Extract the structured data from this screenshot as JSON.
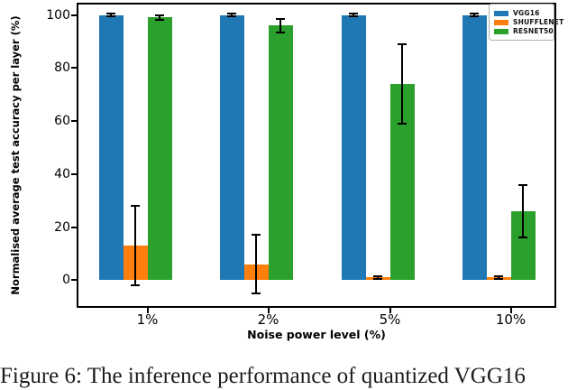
{
  "figure": {
    "caption": "Figure 6: The inference performance of quantized VGG16"
  },
  "chart_data": {
    "type": "bar",
    "title": "",
    "xlabel": "Noise power level (%)",
    "ylabel": "Normalised average test accuracy per layer (%)",
    "categories": [
      "1%",
      "2%",
      "5%",
      "10%"
    ],
    "series": [
      {
        "name": "VGG16",
        "color": "#1f77b4",
        "values": [
          100,
          100,
          100,
          100
        ],
        "errors": [
          0.4,
          0.4,
          0.4,
          0.4
        ]
      },
      {
        "name": "SHUFFLENET",
        "color": "#ff7f0e",
        "values": [
          13,
          6,
          1,
          1
        ],
        "errors": [
          15,
          11,
          0.5,
          0.5
        ]
      },
      {
        "name": "RESNET50",
        "color": "#2ca02c",
        "values": [
          99,
          96,
          74,
          26
        ],
        "errors": [
          0.8,
          2.5,
          15,
          10
        ]
      }
    ],
    "yticks": [
      0,
      20,
      40,
      60,
      80,
      100
    ],
    "ylim": [
      -10.4,
      104.6
    ],
    "grid": false,
    "legend_position": "upper right",
    "error_bar_color": "#000000",
    "legend_entries": [
      "VGG16",
      "SHUFFLENET",
      "RESNET50"
    ]
  }
}
